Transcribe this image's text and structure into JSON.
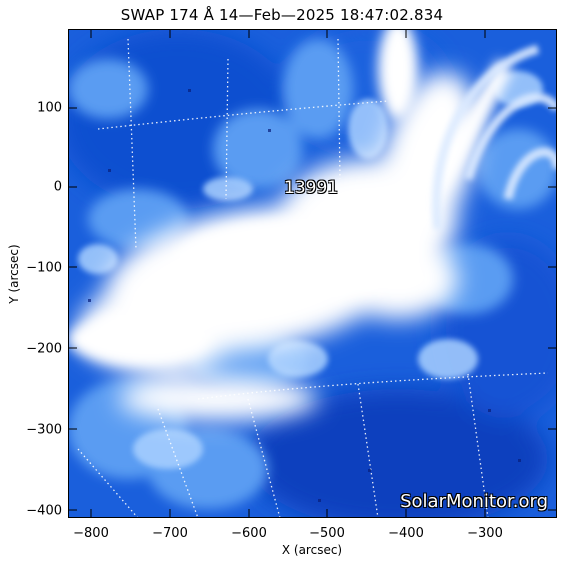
{
  "title": "SWAP 174 Å 14—Feb—2025 18:47:02.834",
  "x_axis": {
    "label": "X (arcsec)",
    "ticks": [
      "−800",
      "−700",
      "−600",
      "−500",
      "−400",
      "−300"
    ]
  },
  "y_axis": {
    "label": "Y (arcsec)",
    "ticks": [
      "100",
      "0",
      "−100",
      "−200",
      "−300",
      "−400"
    ]
  },
  "active_region_label": "13991",
  "watermark": "SolarMonitor.org",
  "colors": {
    "deep_blue": "#0a45c8",
    "mid_blue": "#2a78e6",
    "light_blue": "#8fc0ff",
    "saturated": "#ffffff"
  }
}
